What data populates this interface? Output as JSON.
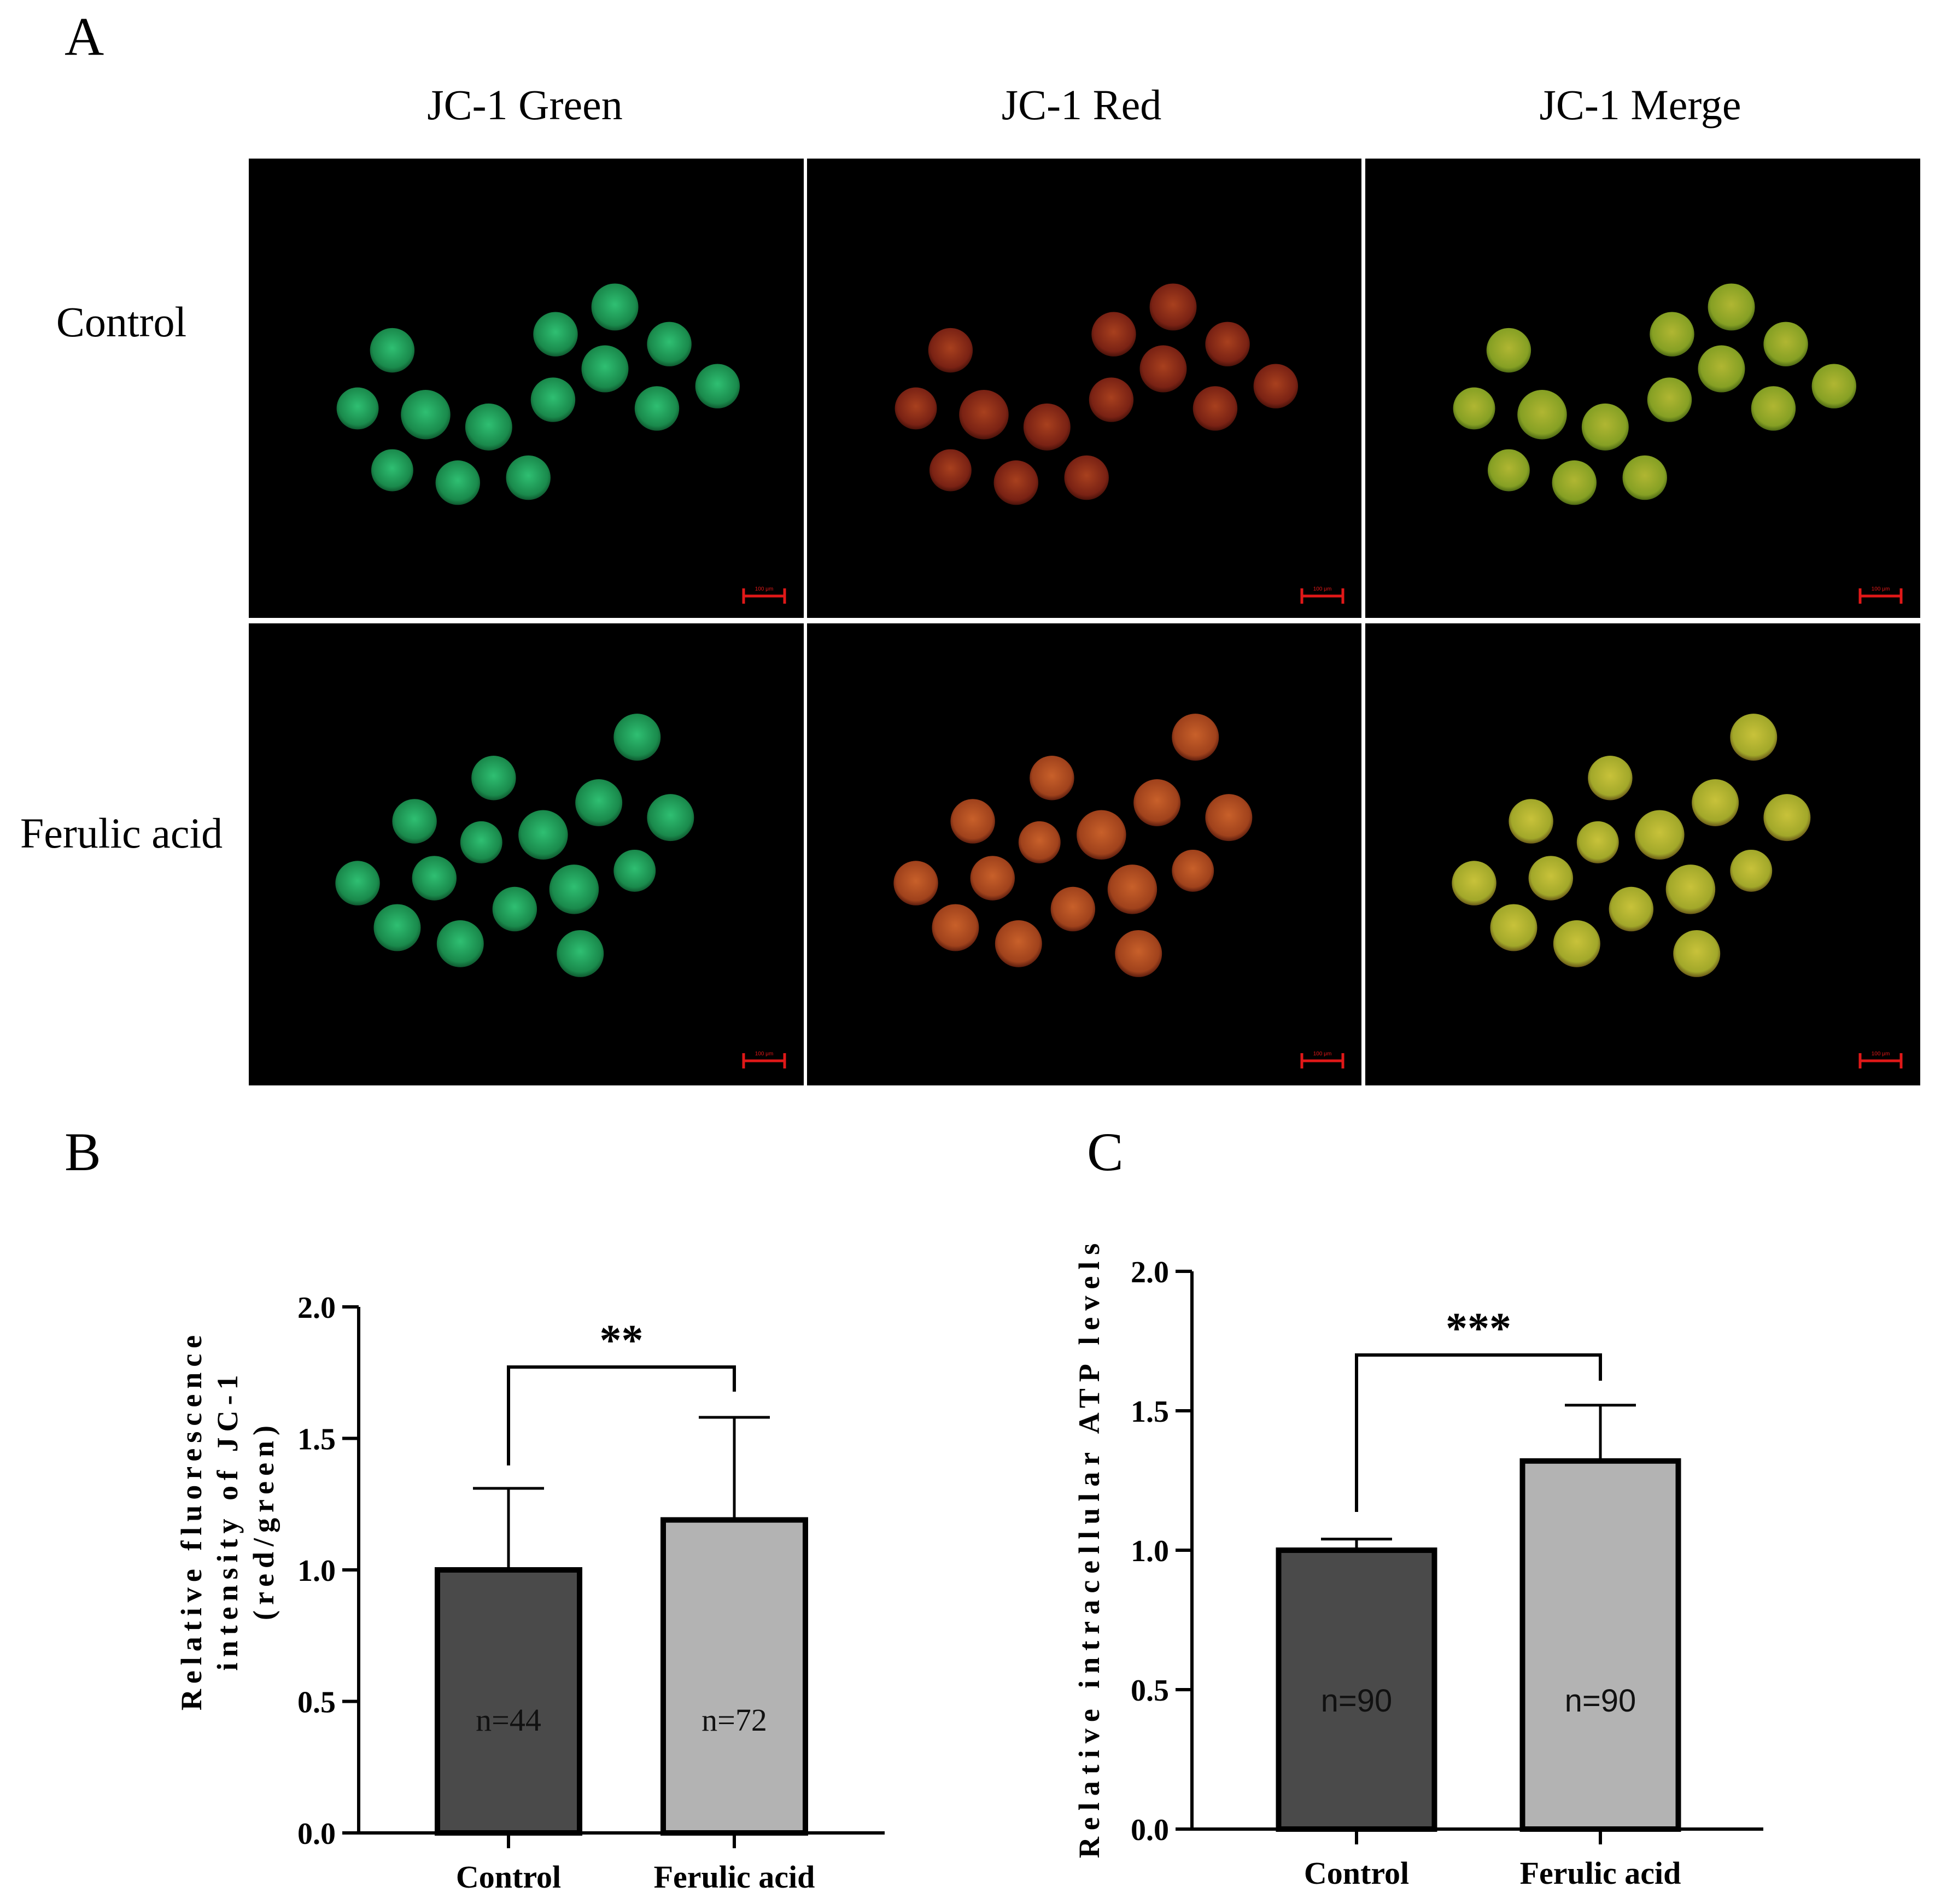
{
  "panel_a": {
    "label": "A",
    "columns": [
      "JC-1 Green",
      "JC-1 Red",
      "JC-1 Merge"
    ],
    "rows": [
      "Control",
      "Ferulic acid"
    ],
    "scale_bar_label": "100 μm",
    "channel_colors": {
      "green": "#1f9a5a",
      "red": "#8a2a18",
      "merge_control": "#8ea228",
      "merge_treated": "#a4a62c"
    }
  },
  "chart_data": [
    {
      "panel_label": "B",
      "type": "bar",
      "categories": [
        "Control",
        "Ferulic acid"
      ],
      "values": [
        1.0,
        1.19
      ],
      "error_upper": [
        1.31,
        1.58
      ],
      "n_labels": [
        "n=44",
        "n=72"
      ],
      "bar_colors": [
        "#4a4a4a",
        "#b3b3b3"
      ],
      "significance": "**",
      "title": "",
      "xlabel": "",
      "ylabel": [
        "Relative fluorescence",
        "intensity of JC-1",
        "(red/green)"
      ],
      "ylim": [
        0,
        2.0
      ],
      "yticks": [
        "0.0",
        "0.5",
        "1.0",
        "1.5",
        "2.0"
      ],
      "grid": false,
      "legend": "none"
    },
    {
      "panel_label": "C",
      "type": "bar",
      "categories": [
        "Control",
        "Ferulic acid"
      ],
      "values": [
        1.0,
        1.32
      ],
      "error_upper": [
        1.04,
        1.52
      ],
      "n_labels": [
        "n=90",
        "n=90"
      ],
      "bar_colors": [
        "#4a4a4a",
        "#b3b3b3"
      ],
      "significance": "***",
      "title": "",
      "xlabel": "",
      "ylabel": [
        "Relative intracellular ATP levels"
      ],
      "ylim": [
        0,
        2.0
      ],
      "yticks": [
        "0.0",
        "0.5",
        "1.0",
        "1.5",
        "2.0"
      ],
      "grid": false,
      "legend": "none"
    }
  ]
}
